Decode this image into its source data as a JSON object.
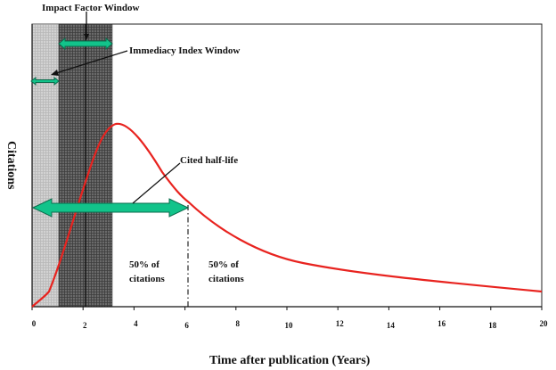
{
  "labels": {
    "impact_factor_window": "Impact Factor Window",
    "immediacy_index_window": "Immediacy Index Window",
    "cited_half_life": "Cited half-life",
    "left_pct": "50% of",
    "left_word": "citations",
    "right_pct": "50% of",
    "right_word": "citations",
    "y_axis": "Citations",
    "x_axis": "Time after publication (Years)"
  },
  "x_ticks": [
    "0",
    "2",
    "4",
    "6",
    "8",
    "10",
    "12",
    "14",
    "16",
    "18",
    "20"
  ],
  "colors": {
    "curve": "#e8231f",
    "arrow_fill": "#12c38a",
    "arrow_stroke": "#0b6b4c",
    "dark_window": "#5e5e5e",
    "light_window": "#cdcdcd"
  }
}
